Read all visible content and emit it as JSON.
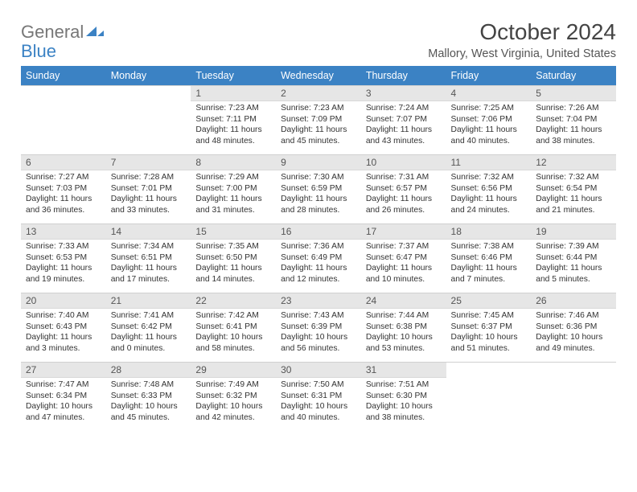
{
  "logo": {
    "word1": "General",
    "word2": "Blue",
    "mark_color": "#3b82c4"
  },
  "title": "October 2024",
  "subtitle": "Mallory, West Virginia, United States",
  "header_row_color": "#3b82c4",
  "daynum_bg": "#e6e6e6",
  "text_color": "#333333",
  "fontsize_title_pt": 21,
  "fontsize_subtitle_pt": 11,
  "fontsize_header_pt": 9.5,
  "fontsize_body_pt": 7.8,
  "day_names": [
    "Sunday",
    "Monday",
    "Tuesday",
    "Wednesday",
    "Thursday",
    "Friday",
    "Saturday"
  ],
  "weeks": [
    [
      null,
      null,
      {
        "n": "1",
        "sunrise": "Sunrise: 7:23 AM",
        "sunset": "Sunset: 7:11 PM",
        "day1": "Daylight: 11 hours",
        "day2": "and 48 minutes."
      },
      {
        "n": "2",
        "sunrise": "Sunrise: 7:23 AM",
        "sunset": "Sunset: 7:09 PM",
        "day1": "Daylight: 11 hours",
        "day2": "and 45 minutes."
      },
      {
        "n": "3",
        "sunrise": "Sunrise: 7:24 AM",
        "sunset": "Sunset: 7:07 PM",
        "day1": "Daylight: 11 hours",
        "day2": "and 43 minutes."
      },
      {
        "n": "4",
        "sunrise": "Sunrise: 7:25 AM",
        "sunset": "Sunset: 7:06 PM",
        "day1": "Daylight: 11 hours",
        "day2": "and 40 minutes."
      },
      {
        "n": "5",
        "sunrise": "Sunrise: 7:26 AM",
        "sunset": "Sunset: 7:04 PM",
        "day1": "Daylight: 11 hours",
        "day2": "and 38 minutes."
      }
    ],
    [
      {
        "n": "6",
        "sunrise": "Sunrise: 7:27 AM",
        "sunset": "Sunset: 7:03 PM",
        "day1": "Daylight: 11 hours",
        "day2": "and 36 minutes."
      },
      {
        "n": "7",
        "sunrise": "Sunrise: 7:28 AM",
        "sunset": "Sunset: 7:01 PM",
        "day1": "Daylight: 11 hours",
        "day2": "and 33 minutes."
      },
      {
        "n": "8",
        "sunrise": "Sunrise: 7:29 AM",
        "sunset": "Sunset: 7:00 PM",
        "day1": "Daylight: 11 hours",
        "day2": "and 31 minutes."
      },
      {
        "n": "9",
        "sunrise": "Sunrise: 7:30 AM",
        "sunset": "Sunset: 6:59 PM",
        "day1": "Daylight: 11 hours",
        "day2": "and 28 minutes."
      },
      {
        "n": "10",
        "sunrise": "Sunrise: 7:31 AM",
        "sunset": "Sunset: 6:57 PM",
        "day1": "Daylight: 11 hours",
        "day2": "and 26 minutes."
      },
      {
        "n": "11",
        "sunrise": "Sunrise: 7:32 AM",
        "sunset": "Sunset: 6:56 PM",
        "day1": "Daylight: 11 hours",
        "day2": "and 24 minutes."
      },
      {
        "n": "12",
        "sunrise": "Sunrise: 7:32 AM",
        "sunset": "Sunset: 6:54 PM",
        "day1": "Daylight: 11 hours",
        "day2": "and 21 minutes."
      }
    ],
    [
      {
        "n": "13",
        "sunrise": "Sunrise: 7:33 AM",
        "sunset": "Sunset: 6:53 PM",
        "day1": "Daylight: 11 hours",
        "day2": "and 19 minutes."
      },
      {
        "n": "14",
        "sunrise": "Sunrise: 7:34 AM",
        "sunset": "Sunset: 6:51 PM",
        "day1": "Daylight: 11 hours",
        "day2": "and 17 minutes."
      },
      {
        "n": "15",
        "sunrise": "Sunrise: 7:35 AM",
        "sunset": "Sunset: 6:50 PM",
        "day1": "Daylight: 11 hours",
        "day2": "and 14 minutes."
      },
      {
        "n": "16",
        "sunrise": "Sunrise: 7:36 AM",
        "sunset": "Sunset: 6:49 PM",
        "day1": "Daylight: 11 hours",
        "day2": "and 12 minutes."
      },
      {
        "n": "17",
        "sunrise": "Sunrise: 7:37 AM",
        "sunset": "Sunset: 6:47 PM",
        "day1": "Daylight: 11 hours",
        "day2": "and 10 minutes."
      },
      {
        "n": "18",
        "sunrise": "Sunrise: 7:38 AM",
        "sunset": "Sunset: 6:46 PM",
        "day1": "Daylight: 11 hours",
        "day2": "and 7 minutes."
      },
      {
        "n": "19",
        "sunrise": "Sunrise: 7:39 AM",
        "sunset": "Sunset: 6:44 PM",
        "day1": "Daylight: 11 hours",
        "day2": "and 5 minutes."
      }
    ],
    [
      {
        "n": "20",
        "sunrise": "Sunrise: 7:40 AM",
        "sunset": "Sunset: 6:43 PM",
        "day1": "Daylight: 11 hours",
        "day2": "and 3 minutes."
      },
      {
        "n": "21",
        "sunrise": "Sunrise: 7:41 AM",
        "sunset": "Sunset: 6:42 PM",
        "day1": "Daylight: 11 hours",
        "day2": "and 0 minutes."
      },
      {
        "n": "22",
        "sunrise": "Sunrise: 7:42 AM",
        "sunset": "Sunset: 6:41 PM",
        "day1": "Daylight: 10 hours",
        "day2": "and 58 minutes."
      },
      {
        "n": "23",
        "sunrise": "Sunrise: 7:43 AM",
        "sunset": "Sunset: 6:39 PM",
        "day1": "Daylight: 10 hours",
        "day2": "and 56 minutes."
      },
      {
        "n": "24",
        "sunrise": "Sunrise: 7:44 AM",
        "sunset": "Sunset: 6:38 PM",
        "day1": "Daylight: 10 hours",
        "day2": "and 53 minutes."
      },
      {
        "n": "25",
        "sunrise": "Sunrise: 7:45 AM",
        "sunset": "Sunset: 6:37 PM",
        "day1": "Daylight: 10 hours",
        "day2": "and 51 minutes."
      },
      {
        "n": "26",
        "sunrise": "Sunrise: 7:46 AM",
        "sunset": "Sunset: 6:36 PM",
        "day1": "Daylight: 10 hours",
        "day2": "and 49 minutes."
      }
    ],
    [
      {
        "n": "27",
        "sunrise": "Sunrise: 7:47 AM",
        "sunset": "Sunset: 6:34 PM",
        "day1": "Daylight: 10 hours",
        "day2": "and 47 minutes."
      },
      {
        "n": "28",
        "sunrise": "Sunrise: 7:48 AM",
        "sunset": "Sunset: 6:33 PM",
        "day1": "Daylight: 10 hours",
        "day2": "and 45 minutes."
      },
      {
        "n": "29",
        "sunrise": "Sunrise: 7:49 AM",
        "sunset": "Sunset: 6:32 PM",
        "day1": "Daylight: 10 hours",
        "day2": "and 42 minutes."
      },
      {
        "n": "30",
        "sunrise": "Sunrise: 7:50 AM",
        "sunset": "Sunset: 6:31 PM",
        "day1": "Daylight: 10 hours",
        "day2": "and 40 minutes."
      },
      {
        "n": "31",
        "sunrise": "Sunrise: 7:51 AM",
        "sunset": "Sunset: 6:30 PM",
        "day1": "Daylight: 10 hours",
        "day2": "and 38 minutes."
      },
      null,
      null
    ]
  ]
}
